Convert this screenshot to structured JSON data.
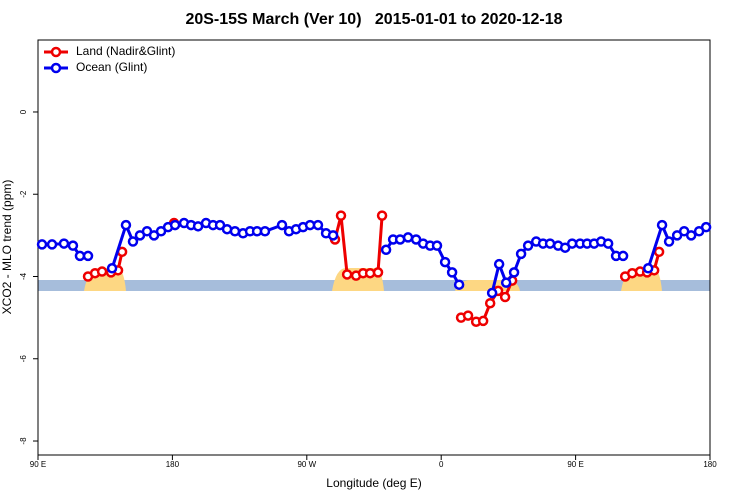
{
  "chart_data": {
    "type": "line",
    "title": "20S-15S March (Ver 10)   2015-01-01 to 2020-12-18",
    "x_label": "Longitude (deg E)",
    "y_label": "XCO2 - MLO trend (ppm)",
    "xlim": [
      90,
      540
    ],
    "ylim": [
      -8.34,
      1.75
    ],
    "xticks": [
      {
        "value": 90,
        "label": "90 E"
      },
      180,
      {
        "value": 270,
        "label": "90 W"
      },
      {
        "value": 360,
        "label": "0"
      },
      {
        "value": 450,
        "label": "90 E"
      },
      {
        "value": 540,
        "label": "180"
      }
    ],
    "yticks": [
      0,
      -2,
      -4,
      -6,
      -8
    ],
    "legend": "topleft",
    "series": [
      {
        "name": "Land (Nadir&Glint)",
        "color": "#ee0000",
        "x": [
          123.5,
          128.2,
          132.9,
          138.9,
          143.6,
          146.3,
          null,
          181.1,
          null,
          288.9,
          292.9,
          297.0,
          303.0,
          307.7,
          312.4,
          317.7,
          320.4,
          null,
          373.3,
          378.0,
          383.4,
          388.1,
          392.8,
          398.1,
          402.8,
          407.5,
          null,
          483.2,
          487.9,
          493.2,
          497.9,
          502.6,
          505.9
        ],
        "values": [
          -4.0,
          -3.92,
          -3.88,
          -3.9,
          -3.85,
          -3.4,
          null,
          -2.7,
          null,
          -3.1,
          -2.52,
          -3.95,
          -3.98,
          -3.92,
          -3.92,
          -3.9,
          -2.52,
          null,
          -5.0,
          -4.95,
          -5.1,
          -5.08,
          -4.65,
          -4.35,
          -4.5,
          -4.1,
          null,
          -4.0,
          -3.92,
          -3.88,
          -3.9,
          -3.85,
          -3.4
        ]
      },
      {
        "name": "Ocean (Glint)",
        "color": "#0000ee",
        "x": [
          92.7,
          99.4,
          107.4,
          113.4,
          118.1,
          123.5,
          null,
          139.6,
          148.9,
          153.6,
          158.3,
          163.0,
          167.7,
          172.4,
          177.1,
          181.8,
          187.8,
          192.5,
          197.2,
          202.5,
          207.2,
          211.9,
          216.6,
          221.9,
          227.3,
          232.0,
          236.7,
          242.0,
          253.4,
          258.1,
          262.8,
          267.5,
          272.2,
          277.5,
          282.9,
          287.6,
          null,
          323.1,
          327.8,
          332.5,
          337.8,
          343.2,
          347.9,
          352.6,
          357.2,
          362.6,
          367.3,
          372.0,
          null,
          394.1,
          398.8,
          403.5,
          408.8,
          413.5,
          418.2,
          423.6,
          428.2,
          432.9,
          438.3,
          443.0,
          447.7,
          453.0,
          457.7,
          462.4,
          467.1,
          471.8,
          477.1,
          481.8,
          null,
          498.6,
          507.9,
          512.6,
          518.0,
          522.7,
          527.4,
          532.7,
          537.4
        ],
        "values": [
          -3.22,
          -3.22,
          -3.2,
          -3.25,
          -3.5,
          -3.5,
          null,
          -3.8,
          -2.75,
          -3.15,
          -3.0,
          -2.9,
          -3.0,
          -2.9,
          -2.8,
          -2.75,
          -2.7,
          -2.75,
          -2.78,
          -2.7,
          -2.75,
          -2.75,
          -2.85,
          -2.9,
          -2.95,
          -2.9,
          -2.9,
          -2.9,
          -2.75,
          -2.9,
          -2.85,
          -2.8,
          -2.75,
          -2.75,
          -2.95,
          -3.0,
          null,
          -3.35,
          -3.1,
          -3.1,
          -3.05,
          -3.1,
          -3.2,
          -3.25,
          -3.25,
          -3.65,
          -3.9,
          -4.2,
          null,
          -4.4,
          -3.7,
          -4.15,
          -3.9,
          -3.45,
          -3.25,
          -3.15,
          -3.2,
          -3.2,
          -3.25,
          -3.3,
          -3.2,
          -3.2,
          -3.2,
          -3.2,
          -3.15,
          -3.2,
          -3.5,
          -3.5,
          null,
          -3.8,
          -2.75,
          -3.15,
          -3.0,
          -2.9,
          -3.0,
          -2.9,
          -2.8
        ]
      }
    ]
  }
}
